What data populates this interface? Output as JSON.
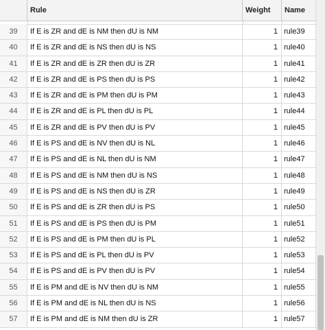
{
  "table": {
    "columns": {
      "index": "",
      "rule": "Rule",
      "weight": "Weight",
      "name": "Name"
    },
    "rows": [
      {
        "index": "39",
        "rule": "If E is ZR and dE is NM then dU is NM",
        "weight": "1",
        "name": "rule39"
      },
      {
        "index": "40",
        "rule": "If E is ZR and dE is NS then dU is NS",
        "weight": "1",
        "name": "rule40"
      },
      {
        "index": "41",
        "rule": "If E is ZR and dE is ZR then dU is ZR",
        "weight": "1",
        "name": "rule41"
      },
      {
        "index": "42",
        "rule": "If E is ZR and dE is PS then dU is PS",
        "weight": "1",
        "name": "rule42"
      },
      {
        "index": "43",
        "rule": "If E is ZR and dE is PM then dU is PM",
        "weight": "1",
        "name": "rule43"
      },
      {
        "index": "44",
        "rule": "If E is ZR and dE is PL then dU is PL",
        "weight": "1",
        "name": "rule44"
      },
      {
        "index": "45",
        "rule": "If E is ZR and dE is PV then dU is PV",
        "weight": "1",
        "name": "rule45"
      },
      {
        "index": "46",
        "rule": "If E is PS and dE is NV then dU is NL",
        "weight": "1",
        "name": "rule46"
      },
      {
        "index": "47",
        "rule": "If E is PS and dE is NL then dU is NM",
        "weight": "1",
        "name": "rule47"
      },
      {
        "index": "48",
        "rule": "If E is PS and dE is NM then dU is NS",
        "weight": "1",
        "name": "rule48"
      },
      {
        "index": "49",
        "rule": "If E is PS and dE is NS then dU is ZR",
        "weight": "1",
        "name": "rule49"
      },
      {
        "index": "50",
        "rule": "If E is PS and dE is ZR then dU is PS",
        "weight": "1",
        "name": "rule50"
      },
      {
        "index": "51",
        "rule": "If E is PS and dE is PS then dU is PM",
        "weight": "1",
        "name": "rule51"
      },
      {
        "index": "52",
        "rule": "If E is PS and dE is PM then dU is PL",
        "weight": "1",
        "name": "rule52"
      },
      {
        "index": "53",
        "rule": "If E is PS and dE is PL then dU is PV",
        "weight": "1",
        "name": "rule53"
      },
      {
        "index": "54",
        "rule": "If E is PS and dE is PV then dU is PV",
        "weight": "1",
        "name": "rule54"
      },
      {
        "index": "55",
        "rule": "If E is PM and dE is NV then dU is NM",
        "weight": "1",
        "name": "rule55"
      },
      {
        "index": "56",
        "rule": "If E is PM and dE is NL then dU is NS",
        "weight": "1",
        "name": "rule56"
      },
      {
        "index": "57",
        "rule": "If E is PM and dE is NM then dU is ZR",
        "weight": "1",
        "name": "rule57"
      }
    ]
  },
  "colors": {
    "header_bg": "#f3f3f3",
    "grid_line": "#d9d9d9",
    "scroll_thumb": "#c1c1c1"
  }
}
